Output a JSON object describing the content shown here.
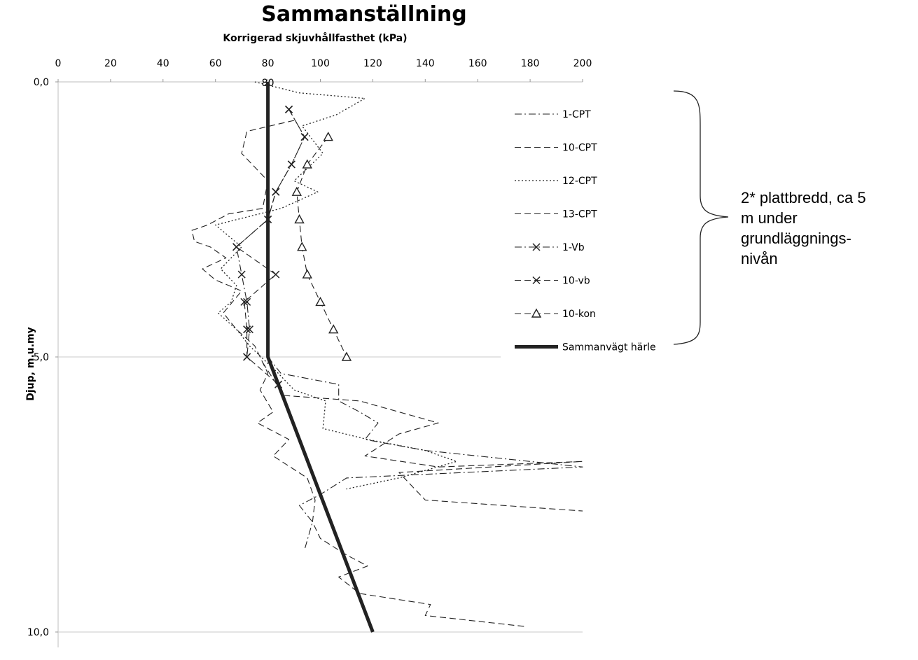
{
  "chart_data": {
    "type": "line",
    "title": "Sammanställning",
    "xlabel": "Korrigerad skjuvhållfasthet (kPa)",
    "ylabel": "Djup, m.u.my",
    "xlim": [
      0,
      200
    ],
    "ylim": [
      0,
      10
    ],
    "x_axis_position": "top",
    "y_axis_reversed": true,
    "x_ticks": [
      "0",
      "20",
      "40",
      "60",
      "80",
      "100",
      "120",
      "140",
      "160",
      "180",
      "200"
    ],
    "y_ticks": [
      "0,0",
      "5,0",
      "10,0"
    ],
    "annotation_label": "80",
    "grid": "horizontal at 5,0",
    "legend_position": "right",
    "series": [
      {
        "name": "1-CPT",
        "style": "dash-dot",
        "marker": "none",
        "points": [
          [
            80,
            5.0
          ],
          [
            85,
            5.3
          ],
          [
            107,
            5.5
          ],
          [
            107,
            5.8
          ],
          [
            115,
            6.0
          ],
          [
            122,
            6.2
          ],
          [
            117,
            6.5
          ],
          [
            140,
            6.7
          ],
          [
            200,
            7.0
          ],
          [
            110,
            7.2
          ],
          [
            100,
            7.5
          ],
          [
            92,
            7.7
          ],
          [
            97,
            8.0
          ],
          [
            94,
            8.5
          ]
        ]
      },
      {
        "name": "10-CPT",
        "style": "dashed",
        "marker": "none",
        "points": [
          [
            78,
            5.1
          ],
          [
            82,
            5.4
          ],
          [
            86,
            5.7
          ],
          [
            115,
            5.8
          ],
          [
            145,
            6.2
          ],
          [
            130,
            6.4
          ],
          [
            117,
            6.8
          ],
          [
            145,
            7.0
          ],
          [
            200,
            6.9
          ],
          [
            130,
            7.1
          ],
          [
            140,
            7.6
          ],
          [
            200,
            7.8
          ]
        ]
      },
      {
        "name": "12-CPT",
        "style": "dotted",
        "marker": "none",
        "points": [
          [
            75,
            0.0
          ],
          [
            92,
            0.2
          ],
          [
            117,
            0.3
          ],
          [
            106,
            0.6
          ],
          [
            93,
            0.8
          ],
          [
            101,
            1.3
          ],
          [
            90,
            1.8
          ],
          [
            99,
            2.0
          ],
          [
            85,
            2.3
          ],
          [
            60,
            2.6
          ],
          [
            70,
            3.0
          ],
          [
            62,
            3.4
          ],
          [
            68,
            3.7
          ],
          [
            66,
            4.0
          ],
          [
            61,
            4.2
          ],
          [
            68,
            4.5
          ],
          [
            73,
            4.8
          ],
          [
            84,
            5.3
          ],
          [
            90,
            5.6
          ],
          [
            102,
            5.8
          ],
          [
            101,
            6.3
          ],
          [
            118,
            6.5
          ],
          [
            140,
            6.7
          ],
          [
            152,
            6.9
          ],
          [
            130,
            7.2
          ],
          [
            110,
            7.4
          ],
          [
            120,
            7.3
          ],
          [
            130,
            7.2
          ]
        ]
      },
      {
        "name": "13-CPT",
        "style": "dashed",
        "marker": "none",
        "points": [
          [
            90,
            0.7
          ],
          [
            72,
            0.9
          ],
          [
            70,
            1.3
          ],
          [
            80,
            1.8
          ],
          [
            78,
            2.3
          ],
          [
            65,
            2.4
          ],
          [
            57,
            2.6
          ],
          [
            51,
            2.7
          ],
          [
            52,
            2.9
          ],
          [
            58,
            3.0
          ],
          [
            64,
            3.2
          ],
          [
            55,
            3.4
          ],
          [
            60,
            3.6
          ],
          [
            70,
            3.8
          ],
          [
            63,
            4.2
          ],
          [
            68,
            4.5
          ],
          [
            75,
            4.8
          ],
          [
            80,
            5.3
          ],
          [
            77,
            5.6
          ],
          [
            82,
            6.0
          ],
          [
            76,
            6.2
          ],
          [
            88,
            6.5
          ],
          [
            82,
            6.8
          ],
          [
            95,
            7.2
          ],
          [
            98,
            7.6
          ],
          [
            97,
            8.0
          ],
          [
            100,
            8.3
          ],
          [
            110,
            8.6
          ],
          [
            118,
            8.8
          ],
          [
            107,
            9.0
          ],
          [
            115,
            9.3
          ],
          [
            142,
            9.5
          ],
          [
            140,
            9.7
          ],
          [
            178,
            9.9
          ]
        ]
      },
      {
        "name": "1-Vb",
        "style": "dash-dot",
        "marker": "x",
        "points": [
          [
            88,
            0.5
          ],
          [
            94,
            1.0
          ],
          [
            89,
            1.5
          ],
          [
            83,
            2.0
          ],
          [
            80,
            2.5
          ],
          [
            68,
            3.0
          ],
          [
            70,
            3.5
          ],
          [
            72,
            4.0
          ],
          [
            73,
            4.5
          ],
          [
            72,
            5.0
          ]
        ]
      },
      {
        "name": "10-vb",
        "style": "dashed",
        "marker": "x",
        "points": [
          [
            88,
            0.5
          ],
          [
            94,
            1.0
          ],
          [
            89,
            1.5
          ],
          [
            83,
            2.0
          ],
          [
            80,
            2.5
          ],
          [
            68,
            3.0
          ],
          [
            83,
            3.5
          ],
          [
            71,
            4.0
          ],
          [
            72,
            4.5
          ],
          [
            72,
            5.0
          ],
          [
            84,
            5.5
          ]
        ]
      },
      {
        "name": "10-kon",
        "style": "dashed",
        "marker": "triangle",
        "points": [
          [
            103,
            1.0
          ],
          [
            95,
            1.5
          ],
          [
            91,
            2.0
          ],
          [
            92,
            2.5
          ],
          [
            93,
            3.0
          ],
          [
            95,
            3.5
          ],
          [
            100,
            4.0
          ],
          [
            105,
            4.5
          ],
          [
            110,
            5.0
          ]
        ]
      },
      {
        "name": "Sammanvägt härle",
        "style": "solid-thick",
        "marker": "none",
        "points": [
          [
            80,
            0.0
          ],
          [
            80,
            5.0
          ],
          [
            120,
            10.0
          ]
        ]
      }
    ]
  },
  "annotation": {
    "lines": [
      "2* plattbredd, ca 5",
      "m under",
      "grundläggnings-",
      "nivån"
    ]
  }
}
